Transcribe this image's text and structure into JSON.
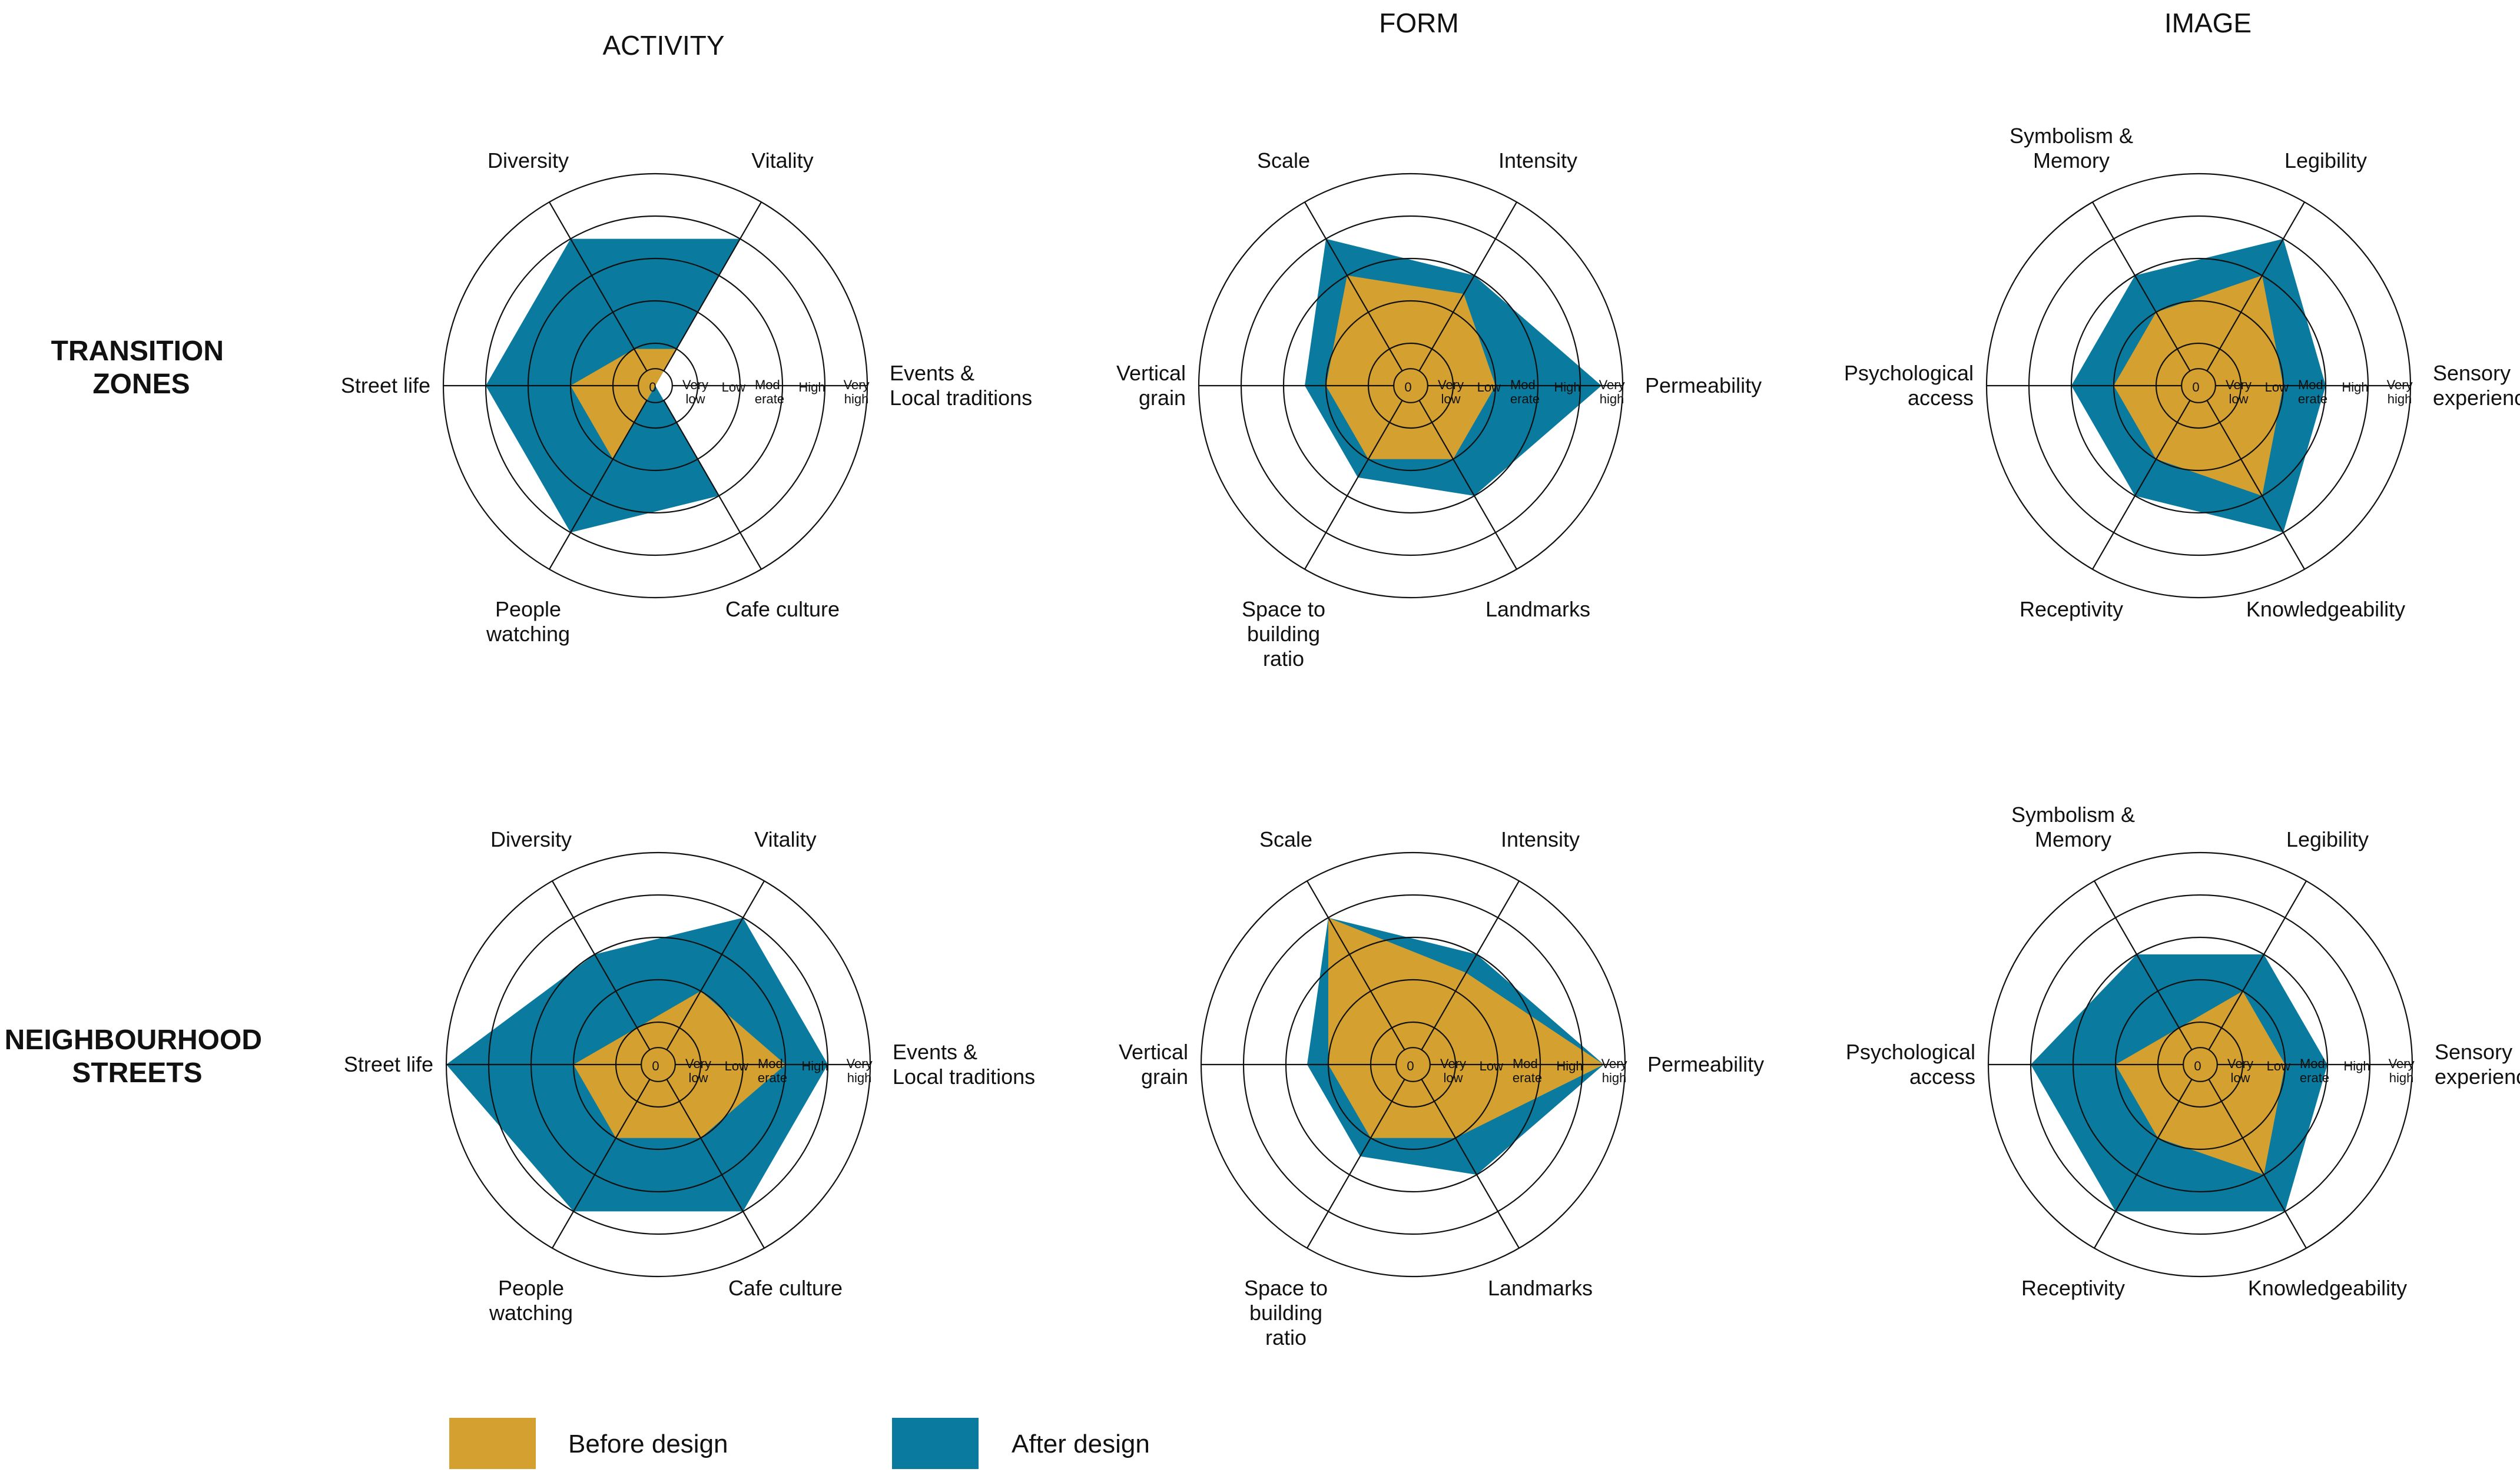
{
  "colors": {
    "before": "#D4A030",
    "after": "#0A7A9E",
    "grid": "#111111"
  },
  "column_titles": [
    "ACTIVITY",
    "FORM",
    "IMAGE"
  ],
  "row_titles": [
    [
      "TRANSITION",
      "ZONES"
    ],
    [
      "NEIGHBOURHOOD",
      "STREETS"
    ]
  ],
  "legend": {
    "before": "Before design",
    "after": "After design"
  },
  "chart_data": [
    {
      "type": "radar",
      "column": "ACTIVITY",
      "row": "TRANSITION ZONES",
      "axes": [
        [
          "Events &",
          "Local traditions"
        ],
        [
          "Vitality"
        ],
        [
          "Diversity"
        ],
        [
          "Street life"
        ],
        [
          "People",
          "watching"
        ],
        [
          "Cafe culture"
        ]
      ],
      "levels": [
        [
          "0"
        ],
        [
          "Very",
          "low"
        ],
        [
          "Low"
        ],
        [
          "Mod-",
          "erate"
        ],
        [
          "High"
        ],
        [
          "Very",
          "high"
        ]
      ],
      "series": [
        {
          "name": "Before design",
          "values": [
            0,
            1,
            1,
            2,
            2,
            0
          ]
        },
        {
          "name": "After design",
          "values": [
            0,
            4,
            4,
            4,
            4,
            3
          ]
        }
      ]
    },
    {
      "type": "radar",
      "column": "FORM",
      "row": "TRANSITION ZONES",
      "axes": [
        [
          "Permeability"
        ],
        [
          "Intensity"
        ],
        [
          "Scale"
        ],
        [
          "Vertical",
          "grain"
        ],
        [
          "Space to",
          "building",
          "ratio"
        ],
        [
          "Landmarks"
        ]
      ],
      "levels": [
        [
          "0"
        ],
        [
          "Very",
          "low"
        ],
        [
          "Low"
        ],
        [
          "Mod-",
          "erate"
        ],
        [
          "High"
        ],
        [
          "Very",
          "high"
        ]
      ],
      "series": [
        {
          "name": "Before design",
          "values": [
            2,
            2.5,
            3,
            2,
            2,
            2
          ]
        },
        {
          "name": "After design",
          "values": [
            4.5,
            3,
            4,
            2.5,
            2.5,
            3
          ]
        }
      ]
    },
    {
      "type": "radar",
      "column": "IMAGE",
      "row": "TRANSITION ZONES",
      "axes": [
        [
          "Sensory",
          "experience"
        ],
        [
          "Legibility"
        ],
        [
          "Symbolism &",
          "Memory"
        ],
        [
          "Psychological",
          "access"
        ],
        [
          "Receptivity"
        ],
        [
          "Knowledgeability"
        ]
      ],
      "levels": [
        [
          "0"
        ],
        [
          "Very",
          "low"
        ],
        [
          "Low"
        ],
        [
          "Mod-",
          "erate"
        ],
        [
          "High"
        ],
        [
          "Very",
          "high"
        ]
      ],
      "series": [
        {
          "name": "Before design",
          "values": [
            2,
            3,
            2,
            2,
            2,
            3
          ]
        },
        {
          "name": "After design",
          "values": [
            3,
            4,
            3,
            3,
            3,
            4
          ]
        }
      ]
    },
    {
      "type": "radar",
      "column": "ACTIVITY",
      "row": "NEIGHBOURHOOD STREETS",
      "axes": [
        [
          "Events &",
          "Local traditions"
        ],
        [
          "Vitality"
        ],
        [
          "Diversity"
        ],
        [
          "Street life"
        ],
        [
          "People",
          "watching"
        ],
        [
          "Cafe culture"
        ]
      ],
      "levels": [
        [
          "0"
        ],
        [
          "Very",
          "low"
        ],
        [
          "Low"
        ],
        [
          "Mod-",
          "erate"
        ],
        [
          "High"
        ],
        [
          "Very",
          "high"
        ]
      ],
      "series": [
        {
          "name": "Before design",
          "values": [
            3,
            2,
            1,
            2,
            2,
            2
          ]
        },
        {
          "name": "After design",
          "values": [
            4,
            4,
            3,
            5,
            4,
            4
          ]
        }
      ]
    },
    {
      "type": "radar",
      "column": "FORM",
      "row": "NEIGHBOURHOOD STREETS",
      "axes": [
        [
          "Permeability"
        ],
        [
          "Intensity"
        ],
        [
          "Scale"
        ],
        [
          "Vertical",
          "grain"
        ],
        [
          "Space to",
          "building",
          "ratio"
        ],
        [
          "Landmarks"
        ]
      ],
      "levels": [
        [
          "0"
        ],
        [
          "Very",
          "low"
        ],
        [
          "Low"
        ],
        [
          "Mod-",
          "erate"
        ],
        [
          "High"
        ],
        [
          "Very",
          "high"
        ]
      ],
      "series": [
        {
          "name": "Before design",
          "values": [
            4.5,
            2.5,
            4,
            2,
            2,
            2
          ]
        },
        {
          "name": "After design",
          "values": [
            4.5,
            3,
            4,
            2.5,
            2.5,
            3
          ]
        }
      ]
    },
    {
      "type": "radar",
      "column": "IMAGE",
      "row": "NEIGHBOURHOOD STREETS",
      "axes": [
        [
          "Sensory",
          "experience"
        ],
        [
          "Legibility"
        ],
        [
          "Symbolism &",
          "Memory"
        ],
        [
          "Psychological",
          "access"
        ],
        [
          "Receptivity"
        ],
        [
          "Knowledgeability"
        ]
      ],
      "levels": [
        [
          "0"
        ],
        [
          "Very",
          "low"
        ],
        [
          "Low"
        ],
        [
          "Mod-",
          "erate"
        ],
        [
          "High"
        ],
        [
          "Very",
          "high"
        ]
      ],
      "series": [
        {
          "name": "Before design",
          "values": [
            2,
            2,
            1,
            2,
            2,
            3
          ]
        },
        {
          "name": "After design",
          "values": [
            3,
            3,
            3,
            4,
            4,
            4
          ]
        }
      ]
    }
  ]
}
